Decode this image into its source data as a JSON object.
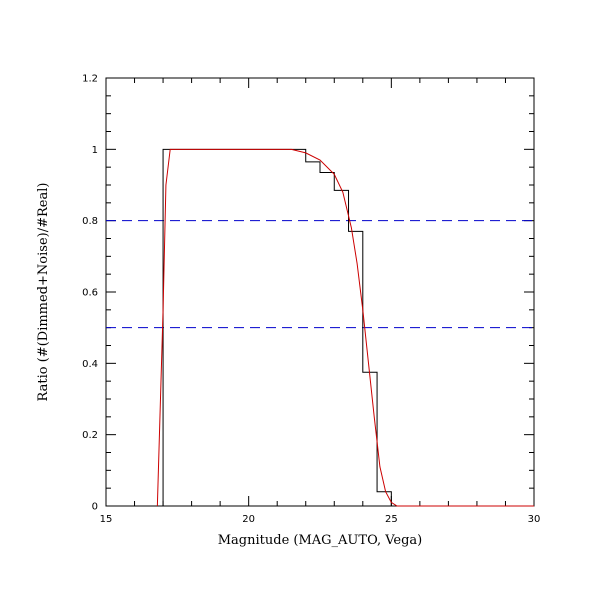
{
  "chart_data": {
    "type": "line",
    "xlabel": "Magnitude (MAG_AUTO, Vega)",
    "ylabel": "Ratio (#(Dimmed+Noise)/#Real)",
    "xlim": [
      15,
      30
    ],
    "ylim": [
      0,
      1.2
    ],
    "x_ticks": [
      15,
      20,
      25,
      30
    ],
    "x_tick_labels": [
      "15",
      "20",
      "25",
      "30"
    ],
    "y_ticks": [
      0,
      0.2,
      0.4,
      0.6,
      0.8,
      1,
      1.2
    ],
    "y_tick_labels": [
      "0",
      "0.2",
      "0.4",
      "0.6",
      "0.8",
      "1",
      "1.2"
    ],
    "grid": false,
    "series": [
      {
        "kind": "step-histogram",
        "color": "#000000",
        "bins": [
          {
            "x0": 17.0,
            "x1": 17.25,
            "y": 1.0
          },
          {
            "x0": 17.25,
            "x1": 21.75,
            "y": 1.0
          },
          {
            "x0": 21.75,
            "x1": 22.0,
            "y": 1.0
          },
          {
            "x0": 22.0,
            "x1": 22.5,
            "y": 0.965
          },
          {
            "x0": 22.5,
            "x1": 23.0,
            "y": 0.935
          },
          {
            "x0": 23.0,
            "x1": 23.5,
            "y": 0.885
          },
          {
            "x0": 23.5,
            "x1": 24.0,
            "y": 0.77
          },
          {
            "x0": 24.0,
            "x1": 24.5,
            "y": 0.375
          },
          {
            "x0": 24.5,
            "x1": 25.0,
            "y": 0.04
          },
          {
            "x0": 25.0,
            "x1": 25.25,
            "y": 0.0
          }
        ]
      },
      {
        "kind": "fit-curve",
        "color": "#cc0000",
        "x": [
          16.8,
          17.0,
          17.1,
          17.25,
          17.5,
          20,
          21.5,
          22.0,
          22.5,
          23.0,
          23.3,
          23.6,
          23.8,
          24.0,
          24.2,
          24.4,
          24.6,
          24.8,
          25.0,
          25.2,
          26,
          28,
          30
        ],
        "y": [
          0.0,
          0.55,
          0.9,
          1.0,
          1.0,
          1.0,
          1.0,
          0.99,
          0.97,
          0.93,
          0.88,
          0.78,
          0.68,
          0.55,
          0.4,
          0.25,
          0.11,
          0.04,
          0.01,
          0.0,
          0.0,
          0.0,
          0.0
        ]
      }
    ],
    "reference_lines": [
      {
        "y": 0.8,
        "color": "#0000cc",
        "style": "dashed"
      },
      {
        "y": 0.5,
        "color": "#0000cc",
        "style": "dashed"
      }
    ]
  }
}
